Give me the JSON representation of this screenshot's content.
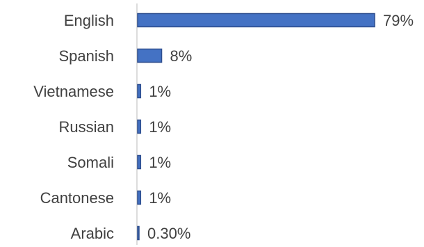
{
  "chart_data": {
    "type": "bar",
    "orientation": "horizontal",
    "categories": [
      "English",
      "Spanish",
      "Vietnamese",
      "Russian",
      "Somali",
      "Cantonese",
      "Arabic"
    ],
    "values": [
      79,
      8,
      1,
      1,
      1,
      1,
      0.3
    ],
    "value_labels": [
      "79%",
      "8%",
      "1%",
      "1%",
      "1%",
      "1%",
      "0.30%"
    ],
    "title": "",
    "xlabel": "",
    "ylabel": "",
    "xlim": [
      0,
      79
    ],
    "grid": false,
    "legend": "none",
    "bar_color": "#4472c4"
  }
}
